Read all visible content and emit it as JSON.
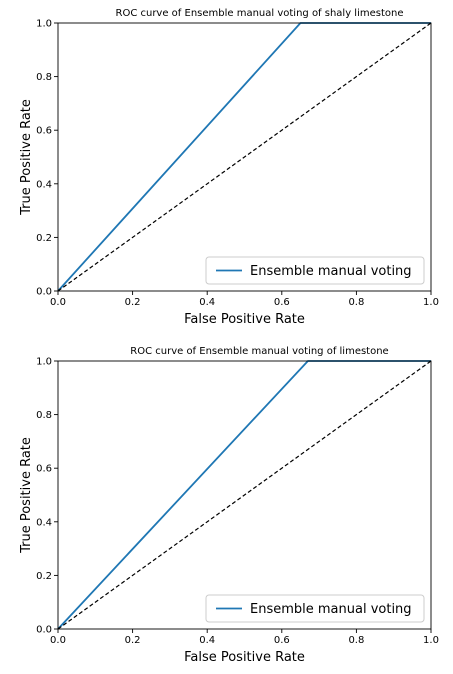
{
  "chart_data": [
    {
      "type": "line",
      "title": "ROC curve of Ensemble manual voting of  shaly limestone",
      "xlabel": "False Positive Rate",
      "ylabel": "True Positive Rate",
      "xlim": [
        0.0,
        1.0
      ],
      "ylim": [
        0.0,
        1.0
      ],
      "xticks": [
        "0.0",
        "0.2",
        "0.4",
        "0.6",
        "0.8",
        "1.0"
      ],
      "yticks": [
        "0.0",
        "0.2",
        "0.4",
        "0.6",
        "0.8",
        "1.0"
      ],
      "grid": false,
      "legend_position": "lower-right",
      "series": [
        {
          "name": "Ensemble manual voting",
          "color": "#1f77b4",
          "style": "solid",
          "x": [
            0.0,
            0.65,
            1.0
          ],
          "y": [
            0.0,
            1.0,
            1.0
          ]
        },
        {
          "color": "#000000",
          "style": "dashed",
          "x": [
            0.0,
            1.0
          ],
          "y": [
            0.0,
            1.0
          ]
        }
      ]
    },
    {
      "type": "line",
      "title": "ROC curve of Ensemble manual voting of  limestone",
      "xlabel": "False Positive Rate",
      "ylabel": "True Positive Rate",
      "xlim": [
        0.0,
        1.0
      ],
      "ylim": [
        0.0,
        1.0
      ],
      "xticks": [
        "0.0",
        "0.2",
        "0.4",
        "0.6",
        "0.8",
        "1.0"
      ],
      "yticks": [
        "0.0",
        "0.2",
        "0.4",
        "0.6",
        "0.8",
        "1.0"
      ],
      "grid": false,
      "legend_position": "lower-right",
      "series": [
        {
          "name": "Ensemble manual voting",
          "color": "#1f77b4",
          "style": "solid",
          "x": [
            0.0,
            0.67,
            1.0
          ],
          "y": [
            0.0,
            1.0,
            1.0
          ]
        },
        {
          "color": "#000000",
          "style": "dashed",
          "x": [
            0.0,
            1.0
          ],
          "y": [
            0.0,
            1.0
          ]
        }
      ]
    }
  ]
}
